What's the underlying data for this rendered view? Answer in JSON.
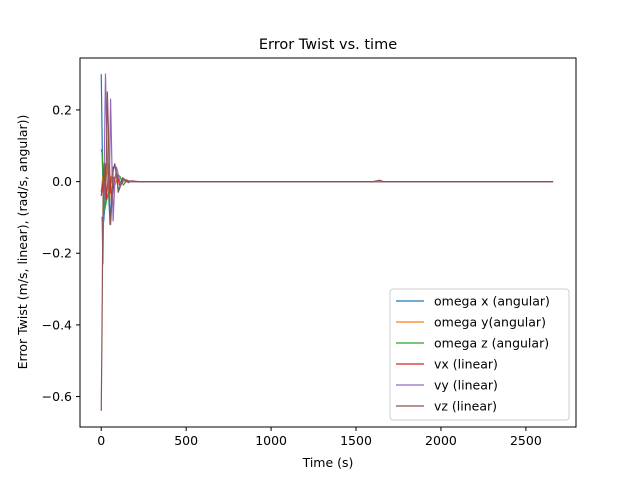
{
  "chart_data": {
    "type": "line",
    "title": "Error Twist vs. time",
    "xlabel": "Time (s)",
    "ylabel": "Error Twist (m/s, linear), (rad/s, angular))",
    "xlim": [
      -125,
      2795
    ],
    "ylim": [
      -0.685,
      0.345
    ],
    "xticks": [
      0,
      500,
      1000,
      1500,
      2000,
      2500
    ],
    "xtick_labels": [
      "0",
      "500",
      "1000",
      "1500",
      "2000",
      "2500"
    ],
    "yticks": [
      -0.6,
      -0.4,
      -0.2,
      0.0,
      0.2
    ],
    "ytick_labels": [
      "−0.6",
      "−0.4",
      "−0.2",
      "0.0",
      "0.2"
    ],
    "grid": false,
    "legend": "lower right",
    "series": [
      {
        "name": "omega x (angular)",
        "color": "#1f77b4",
        "x": [
          0,
          3,
          8,
          15,
          22,
          30,
          38,
          45,
          52,
          60,
          70,
          80,
          90,
          100,
          110,
          125,
          140,
          160,
          180,
          200,
          230,
          260,
          300,
          1000,
          2000,
          2660
        ],
        "y": [
          0.3,
          0.2,
          0.03,
          -0.11,
          -0.06,
          0.03,
          0.05,
          -0.05,
          -0.12,
          -0.04,
          0.04,
          0.045,
          0.02,
          -0.02,
          -0.015,
          0.01,
          0.005,
          -0.003,
          0.002,
          0.0,
          0.0,
          0.0,
          0.0,
          0.0,
          0.0,
          0.0
        ]
      },
      {
        "name": "omega y(angular)",
        "color": "#ff7f0e",
        "x": [
          0,
          8,
          16,
          25,
          33,
          41,
          48,
          56,
          66,
          80,
          95,
          110,
          130,
          160,
          200,
          300,
          1000,
          2000,
          2660
        ],
        "y": [
          -0.03,
          0.01,
          0.035,
          -0.03,
          0.05,
          0.03,
          -0.06,
          0.01,
          0.02,
          -0.01,
          0.01,
          0.0,
          0.0,
          0.0,
          0.0,
          0.0,
          0.0,
          0.0,
          0.0
        ]
      },
      {
        "name": "omega z (angular)",
        "color": "#2ca02c",
        "x": [
          0,
          5,
          12,
          20,
          28,
          38,
          50,
          62,
          76,
          92,
          110,
          130,
          150,
          180,
          220,
          300,
          1000,
          2000,
          2660
        ],
        "y": [
          0.09,
          0.08,
          0.0,
          -0.08,
          -0.06,
          -0.04,
          -0.02,
          0.015,
          0.01,
          0.02,
          0.015,
          -0.01,
          0.003,
          0.0,
          0.0,
          0.0,
          0.0,
          0.0,
          0.0
        ]
      },
      {
        "name": "vx (linear)",
        "color": "#d62728",
        "x": [
          0,
          5,
          10,
          16,
          22,
          30,
          40,
          48,
          56,
          66,
          78,
          92,
          108,
          125,
          145,
          170,
          200,
          300,
          1000,
          2000,
          2660
        ],
        "y": [
          -0.04,
          -0.02,
          0.0,
          -0.04,
          0.05,
          -0.05,
          0.01,
          0.045,
          -0.03,
          -0.04,
          0.01,
          0.02,
          -0.01,
          0.005,
          0.005,
          0.0,
          0.0,
          0.0,
          0.0,
          0.0,
          0.0
        ]
      },
      {
        "name": "vy (linear)",
        "color": "#9467bd",
        "x": [
          0,
          5,
          10,
          15,
          20,
          25,
          32,
          40,
          48,
          55,
          62,
          70,
          80,
          90,
          100,
          115,
          130,
          150,
          180,
          220,
          300,
          1000,
          2000,
          2660
        ],
        "y": [
          -0.1,
          -0.1,
          -0.23,
          -0.05,
          0.12,
          0.3,
          0.15,
          -0.01,
          0.0,
          0.23,
          0.07,
          -0.11,
          0.0,
          0.04,
          0.02,
          -0.01,
          0.005,
          0.0,
          0.0,
          0.0,
          0.0,
          0.0,
          0.0,
          0.0
        ]
      },
      {
        "name": "vz (linear)",
        "color": "#8c564b",
        "x": [
          0,
          4,
          8,
          12,
          16,
          20,
          25,
          30,
          36,
          42,
          48,
          55,
          62,
          70,
          80,
          90,
          100,
          115,
          130,
          150,
          180,
          220,
          300,
          1000,
          1600,
          1640,
          1660,
          2000,
          2660
        ],
        "y": [
          -0.64,
          -0.45,
          -0.2,
          0.0,
          0.05,
          0.0,
          -0.04,
          0.06,
          0.25,
          0.15,
          -0.06,
          -0.12,
          -0.06,
          0.03,
          0.05,
          0.02,
          -0.03,
          -0.01,
          0.01,
          0.0,
          0.002,
          0.0,
          0.0,
          0.0,
          0.0,
          0.004,
          0.0,
          0.0,
          0.0
        ]
      }
    ]
  }
}
